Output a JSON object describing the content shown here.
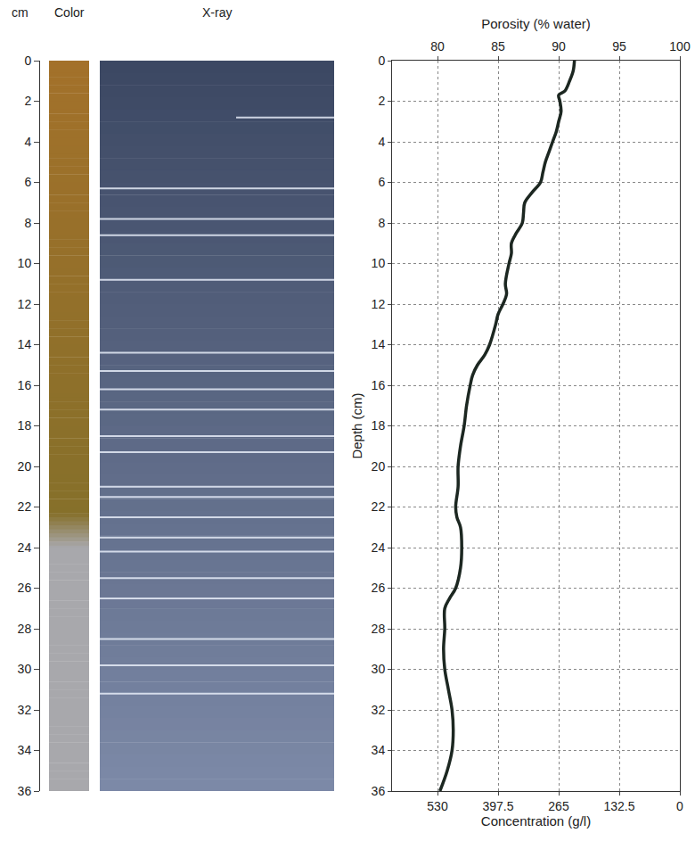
{
  "chart_data": [
    {
      "type": "core_section",
      "depth_label": "cm",
      "ylim": [
        36,
        0
      ],
      "yticks": [
        0,
        2,
        4,
        6,
        8,
        10,
        12,
        14,
        16,
        18,
        20,
        22,
        24,
        26,
        28,
        30,
        32,
        34,
        36
      ],
      "color_column": {
        "title": "Color",
        "color_stops": [
          {
            "depth": 0,
            "color": "#a3712a"
          },
          {
            "depth": 12,
            "color": "#93702a"
          },
          {
            "depth": 22.3,
            "color": "#86702a"
          },
          {
            "depth": 24,
            "color": "#a8a8ac"
          },
          {
            "depth": 36,
            "color": "#a8a8ac"
          }
        ]
      },
      "xray": {
        "title": "X-ray",
        "bright_layers": [
          2.8,
          6.3,
          7.8,
          8.6,
          10.8,
          14.4,
          15.3,
          16.2,
          17.2,
          18.5,
          19.3,
          21.0,
          21.5,
          22.5,
          23.5,
          24.2,
          25.5,
          26.5,
          28.5,
          29.8,
          31.2
        ]
      }
    },
    {
      "type": "line",
      "x_label": "Porosity (% water)",
      "x2_label": "Concentration (g/l)",
      "y_label": "Depth (cm)",
      "x": [
        91.3,
        91.2,
        90.9,
        90.5,
        90.0,
        90.1,
        90.2,
        90.0,
        89.8,
        89.5,
        89.2,
        88.9,
        88.7,
        88.5,
        87.8,
        87.2,
        87.1,
        87.0,
        86.5,
        86.1,
        86.1,
        85.9,
        85.6,
        85.7,
        85.4,
        85.0,
        84.8,
        84.3,
        83.9,
        83.3,
        82.9,
        82.7,
        82.4,
        82.2,
        81.9,
        81.7,
        81.7,
        81.5,
        81.6,
        81.9,
        82.0,
        81.9,
        81.5,
        81.0,
        80.6,
        80.6,
        80.5,
        80.6,
        80.9,
        81.2,
        81.3,
        81.2,
        80.8,
        80.2
      ],
      "y": [
        0,
        0.5,
        1,
        1.5,
        1.7,
        2,
        2.5,
        3,
        3.5,
        4,
        4.5,
        5,
        5.5,
        6,
        6.5,
        7,
        7.5,
        8,
        8.5,
        9,
        9.5,
        10,
        11,
        11.5,
        12,
        12.5,
        13,
        14,
        14.5,
        15,
        15.5,
        16,
        17,
        18,
        19,
        20,
        21,
        22,
        22.5,
        23,
        24,
        25,
        26,
        26.5,
        27,
        28,
        29,
        30,
        31,
        32,
        33,
        34,
        35,
        36
      ],
      "xlim": [
        76.25,
        100
      ],
      "xticks": [
        80,
        85,
        90,
        95,
        100
      ],
      "x2lim": [
        629.4,
        0
      ],
      "x2ticks": [
        530,
        397.5,
        265,
        132.5,
        0
      ],
      "ylim": [
        36,
        0
      ],
      "yticks": [
        0,
        2,
        4,
        6,
        8,
        10,
        12,
        14,
        16,
        18,
        20,
        22,
        24,
        26,
        28,
        30,
        32,
        34,
        36
      ],
      "grid": true,
      "color": "#1c2721",
      "line_style": "solid"
    }
  ]
}
